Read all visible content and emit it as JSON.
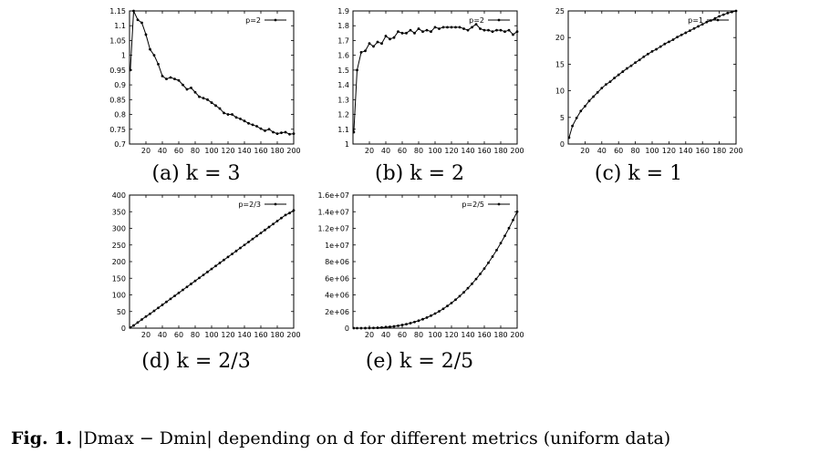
{
  "figure_caption": {
    "label": "Fig. 1.",
    "text": "|Dmax − Dmin| depending on d for different metrics (uniform data)"
  },
  "chart_data": [
    {
      "id": "a",
      "type": "line",
      "caption": "(a)  k = 3",
      "legend": "p=2",
      "xlim": [
        0,
        200
      ],
      "ylim": [
        0.7,
        1.15
      ],
      "xticks": [
        20,
        40,
        60,
        80,
        100,
        120,
        140,
        160,
        180,
        200
      ],
      "yticks": [
        0.7,
        0.75,
        0.8,
        0.85,
        0.9,
        0.95,
        1,
        1.05,
        1.1,
        1.15
      ],
      "ytick_labels": [
        "0.7",
        "0.75",
        "0.8",
        "0.85",
        "0.9",
        "0.95",
        "1",
        "1.05",
        "1.1",
        "1.15"
      ],
      "x": [
        1,
        5,
        10,
        15,
        20,
        25,
        30,
        35,
        40,
        45,
        50,
        55,
        60,
        65,
        70,
        75,
        80,
        85,
        90,
        95,
        100,
        105,
        110,
        115,
        120,
        125,
        130,
        135,
        140,
        145,
        150,
        155,
        160,
        165,
        170,
        175,
        180,
        185,
        190,
        195,
        200
      ],
      "y": [
        0.95,
        1.15,
        1.12,
        1.11,
        1.07,
        1.02,
        1.0,
        0.97,
        0.93,
        0.92,
        0.925,
        0.92,
        0.915,
        0.9,
        0.885,
        0.89,
        0.875,
        0.86,
        0.855,
        0.85,
        0.84,
        0.83,
        0.82,
        0.805,
        0.8,
        0.8,
        0.79,
        0.785,
        0.778,
        0.77,
        0.765,
        0.76,
        0.752,
        0.745,
        0.75,
        0.74,
        0.735,
        0.738,
        0.74,
        0.733,
        0.735
      ]
    },
    {
      "id": "b",
      "type": "line",
      "caption": "(b)  k = 2",
      "legend": "p=2",
      "xlim": [
        0,
        200
      ],
      "ylim": [
        1,
        1.9
      ],
      "xticks": [
        20,
        40,
        60,
        80,
        100,
        120,
        140,
        160,
        180,
        200
      ],
      "yticks": [
        1,
        1.1,
        1.2,
        1.3,
        1.4,
        1.5,
        1.6,
        1.7,
        1.8,
        1.9
      ],
      "ytick_labels": [
        "1",
        "1.1",
        "1.2",
        "1.3",
        "1.4",
        "1.5",
        "1.6",
        "1.7",
        "1.8",
        "1.9"
      ],
      "x": [
        1,
        5,
        10,
        15,
        20,
        25,
        30,
        35,
        40,
        45,
        50,
        55,
        60,
        65,
        70,
        75,
        80,
        85,
        90,
        95,
        100,
        105,
        110,
        115,
        120,
        125,
        130,
        135,
        140,
        145,
        150,
        155,
        160,
        165,
        170,
        175,
        180,
        185,
        190,
        195,
        200
      ],
      "y": [
        1.08,
        1.5,
        1.62,
        1.63,
        1.68,
        1.66,
        1.69,
        1.68,
        1.73,
        1.71,
        1.72,
        1.76,
        1.75,
        1.75,
        1.77,
        1.75,
        1.78,
        1.76,
        1.77,
        1.76,
        1.79,
        1.78,
        1.79,
        1.79,
        1.79,
        1.79,
        1.79,
        1.78,
        1.77,
        1.79,
        1.81,
        1.78,
        1.77,
        1.77,
        1.76,
        1.77,
        1.77,
        1.76,
        1.77,
        1.74,
        1.76
      ]
    },
    {
      "id": "c",
      "type": "line",
      "caption": "(c)  k = 1",
      "legend": "p=1",
      "xlim": [
        0,
        200
      ],
      "ylim": [
        0,
        25
      ],
      "xticks": [
        20,
        40,
        60,
        80,
        100,
        120,
        140,
        160,
        180,
        200
      ],
      "yticks": [
        0,
        5,
        10,
        15,
        20,
        25
      ],
      "ytick_labels": [
        "0",
        "5",
        "10",
        "15",
        "20",
        "25"
      ],
      "x": [
        1,
        5,
        10,
        15,
        20,
        25,
        30,
        35,
        40,
        45,
        50,
        55,
        60,
        65,
        70,
        75,
        80,
        85,
        90,
        95,
        100,
        105,
        110,
        115,
        120,
        125,
        130,
        135,
        140,
        145,
        150,
        155,
        160,
        165,
        170,
        175,
        180,
        185,
        190,
        195,
        200
      ],
      "y": [
        1.2,
        3.4,
        4.9,
        6.2,
        7.1,
        8.1,
        8.9,
        9.7,
        10.5,
        11.2,
        11.7,
        12.4,
        13.0,
        13.6,
        14.2,
        14.7,
        15.3,
        15.8,
        16.4,
        16.9,
        17.4,
        17.8,
        18.3,
        18.8,
        19.2,
        19.6,
        20.1,
        20.5,
        20.9,
        21.3,
        21.7,
        22.1,
        22.5,
        22.9,
        23.2,
        23.6,
        24.0,
        24.3,
        24.6,
        24.8,
        25.0
      ]
    },
    {
      "id": "d",
      "type": "line",
      "caption": "(d)  k = 2/3",
      "legend": "p=2/3",
      "xlim": [
        0,
        200
      ],
      "ylim": [
        0,
        400
      ],
      "xticks": [
        20,
        40,
        60,
        80,
        100,
        120,
        140,
        160,
        180,
        200
      ],
      "yticks": [
        0,
        50,
        100,
        150,
        200,
        250,
        300,
        350,
        400
      ],
      "ytick_labels": [
        "0",
        "50",
        "100",
        "150",
        "200",
        "250",
        "300",
        "350",
        "400"
      ],
      "x": [
        1,
        5,
        10,
        15,
        20,
        25,
        30,
        35,
        40,
        45,
        50,
        55,
        60,
        65,
        70,
        75,
        80,
        85,
        90,
        95,
        100,
        105,
        110,
        115,
        120,
        125,
        130,
        135,
        140,
        145,
        150,
        155,
        160,
        165,
        170,
        175,
        180,
        185,
        190,
        195,
        200
      ],
      "y": [
        2,
        8,
        17,
        26,
        35,
        43,
        52,
        61,
        70,
        79,
        88,
        97,
        106,
        115,
        124,
        133,
        142,
        151,
        160,
        169,
        178,
        187,
        196,
        205,
        214,
        223,
        232,
        241,
        250,
        259,
        268,
        277,
        286,
        295,
        304,
        313,
        322,
        331,
        340,
        346,
        354
      ]
    },
    {
      "id": "e",
      "type": "line",
      "caption": "(e)  k = 2/5",
      "legend": "p=2/5",
      "xlim": [
        0,
        200
      ],
      "ylim": [
        0,
        16000000
      ],
      "xticks": [
        20,
        40,
        60,
        80,
        100,
        120,
        140,
        160,
        180,
        200
      ],
      "yticks": [
        0,
        2000000,
        4000000,
        6000000,
        8000000,
        10000000,
        12000000,
        14000000,
        16000000
      ],
      "ytick_labels": [
        "0",
        "2e+06",
        "4e+06",
        "6e+06",
        "8e+06",
        "1e+07",
        "1.2e+07",
        "1.4e+07",
        "1.6e+07"
      ],
      "x": [
        1,
        5,
        10,
        15,
        20,
        25,
        30,
        35,
        40,
        45,
        50,
        55,
        60,
        65,
        70,
        75,
        80,
        85,
        90,
        95,
        100,
        105,
        110,
        115,
        120,
        125,
        130,
        135,
        140,
        145,
        150,
        155,
        160,
        165,
        170,
        175,
        180,
        185,
        190,
        195,
        200
      ],
      "y": [
        0,
        0,
        1800,
        6000,
        14000,
        27000,
        47000,
        75000,
        112000,
        160000,
        219000,
        291000,
        378000,
        480000,
        600000,
        738000,
        896000,
        1075000,
        1276000,
        1500000,
        1750000,
        2026000,
        2329000,
        2662000,
        3024000,
        3418000,
        3845000,
        4306000,
        4802000,
        5335000,
        5906000,
        6516000,
        7168000,
        7862000,
        8600000,
        9383000,
        10214000,
        11093000,
        12022000,
        13003000,
        14000000
      ]
    }
  ]
}
